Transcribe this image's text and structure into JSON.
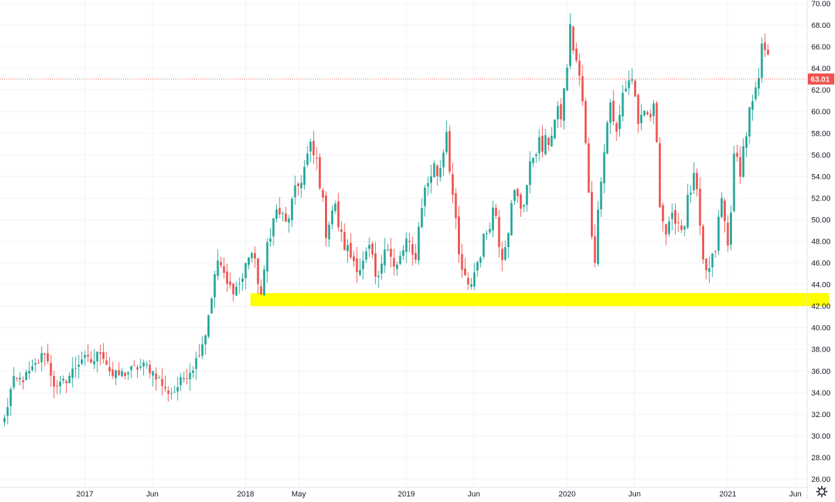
{
  "colors": {
    "up": "#26a69a",
    "down": "#ef5350",
    "support_zone": "#ffff00",
    "grid": "#f0f3fa",
    "axis_text": "#131722",
    "last_price": "#ef5350"
  },
  "settings_icon": "gear-icon",
  "chart_data": {
    "type": "candlestick",
    "title": "",
    "xlabel": "",
    "ylabel": "",
    "ylim": [
      25.2,
      70.3
    ],
    "x_range": [
      2016.5,
      2021.63
    ],
    "y_ticks": [
      "26.00",
      "28.00",
      "30.00",
      "32.00",
      "34.00",
      "36.00",
      "38.00",
      "40.00",
      "42.00",
      "44.00",
      "46.00",
      "48.00",
      "50.00",
      "52.00",
      "54.00",
      "56.00",
      "58.00",
      "60.00",
      "62.00",
      "64.00",
      "66.00",
      "68.00",
      "70.00"
    ],
    "x_ticks": [
      {
        "label": "2017",
        "t": 2017.0
      },
      {
        "label": "Jun",
        "t": 2017.42
      },
      {
        "label": "2018",
        "t": 2018.0
      },
      {
        "label": "May",
        "t": 2018.33
      },
      {
        "label": "2019",
        "t": 2019.0
      },
      {
        "label": "Jun",
        "t": 2019.42
      },
      {
        "label": "2020",
        "t": 2020.0
      },
      {
        "label": "Jun",
        "t": 2020.42
      },
      {
        "label": "2021",
        "t": 2021.0
      },
      {
        "label": "Jun",
        "t": 2021.42
      }
    ],
    "last_price": "63.01",
    "support_zone": {
      "low": 42.0,
      "high": 43.2,
      "from": 2018.03,
      "to": 2021.63
    },
    "trend_anchors": [
      [
        2016.5,
        31.5
      ],
      [
        2016.55,
        35.0
      ],
      [
        2016.62,
        35.3
      ],
      [
        2016.68,
        36.2
      ],
      [
        2016.75,
        37.8
      ],
      [
        2016.82,
        34.2
      ],
      [
        2016.9,
        35.5
      ],
      [
        2016.98,
        37.2
      ],
      [
        2017.05,
        36.8
      ],
      [
        2017.1,
        38.0
      ],
      [
        2017.17,
        35.5
      ],
      [
        2017.25,
        35.8
      ],
      [
        2017.32,
        36.3
      ],
      [
        2017.38,
        36.5
      ],
      [
        2017.45,
        35.5
      ],
      [
        2017.5,
        34.2
      ],
      [
        2017.55,
        34.0
      ],
      [
        2017.62,
        35.5
      ],
      [
        2017.68,
        36.5
      ],
      [
        2017.75,
        39.5
      ],
      [
        2017.8,
        44.0
      ],
      [
        2017.83,
        46.5
      ],
      [
        2017.88,
        44.0
      ],
      [
        2017.93,
        43.5
      ],
      [
        2017.98,
        44.5
      ],
      [
        2018.03,
        47.5
      ],
      [
        2018.1,
        42.8
      ],
      [
        2018.14,
        48.5
      ],
      [
        2018.2,
        51.0
      ],
      [
        2018.25,
        49.5
      ],
      [
        2018.3,
        52.0
      ],
      [
        2018.36,
        54.5
      ],
      [
        2018.4,
        56.5
      ],
      [
        2018.45,
        55.0
      ],
      [
        2018.5,
        49.0
      ],
      [
        2018.55,
        51.5
      ],
      [
        2018.6,
        48.0
      ],
      [
        2018.66,
        46.5
      ],
      [
        2018.72,
        45.5
      ],
      [
        2018.77,
        47.2
      ],
      [
        2018.82,
        43.8
      ],
      [
        2018.87,
        48.5
      ],
      [
        2018.93,
        45.0
      ],
      [
        2019.0,
        48.0
      ],
      [
        2019.05,
        46.0
      ],
      [
        2019.1,
        52.0
      ],
      [
        2019.17,
        55.0
      ],
      [
        2019.2,
        54.0
      ],
      [
        2019.25,
        58.5
      ],
      [
        2019.28,
        53.5
      ],
      [
        2019.33,
        46.0
      ],
      [
        2019.39,
        43.5
      ],
      [
        2019.43,
        45.5
      ],
      [
        2019.5,
        49.0
      ],
      [
        2019.55,
        51.5
      ],
      [
        2019.59,
        46.5
      ],
      [
        2019.63,
        49.0
      ],
      [
        2019.67,
        52.5
      ],
      [
        2019.72,
        51.0
      ],
      [
        2019.8,
        57.0
      ],
      [
        2019.86,
        56.5
      ],
      [
        2019.92,
        59.0
      ],
      [
        2019.97,
        60.0
      ],
      [
        2020.02,
        67.5
      ],
      [
        2020.06,
        64.5
      ],
      [
        2020.1,
        60.5
      ],
      [
        2020.13,
        53.0
      ],
      [
        2020.17,
        46.0
      ],
      [
        2020.22,
        56.0
      ],
      [
        2020.27,
        61.0
      ],
      [
        2020.31,
        57.5
      ],
      [
        2020.35,
        62.0
      ],
      [
        2020.4,
        63.5
      ],
      [
        2020.45,
        58.5
      ],
      [
        2020.5,
        59.5
      ],
      [
        2020.55,
        60.0
      ],
      [
        2020.58,
        51.0
      ],
      [
        2020.62,
        48.5
      ],
      [
        2020.67,
        50.5
      ],
      [
        2020.72,
        49.0
      ],
      [
        2020.76,
        52.5
      ],
      [
        2020.8,
        54.0
      ],
      [
        2020.84,
        46.0
      ],
      [
        2020.88,
        45.0
      ],
      [
        2020.92,
        47.0
      ],
      [
        2020.96,
        52.0
      ],
      [
        2021.0,
        47.5
      ],
      [
        2021.04,
        55.5
      ],
      [
        2021.08,
        55.0
      ],
      [
        2021.13,
        59.5
      ],
      [
        2021.18,
        61.5
      ],
      [
        2021.22,
        66.5
      ],
      [
        2021.26,
        66.0
      ],
      [
        2021.29,
        64.0
      ],
      [
        2021.31,
        63.0
      ]
    ]
  }
}
